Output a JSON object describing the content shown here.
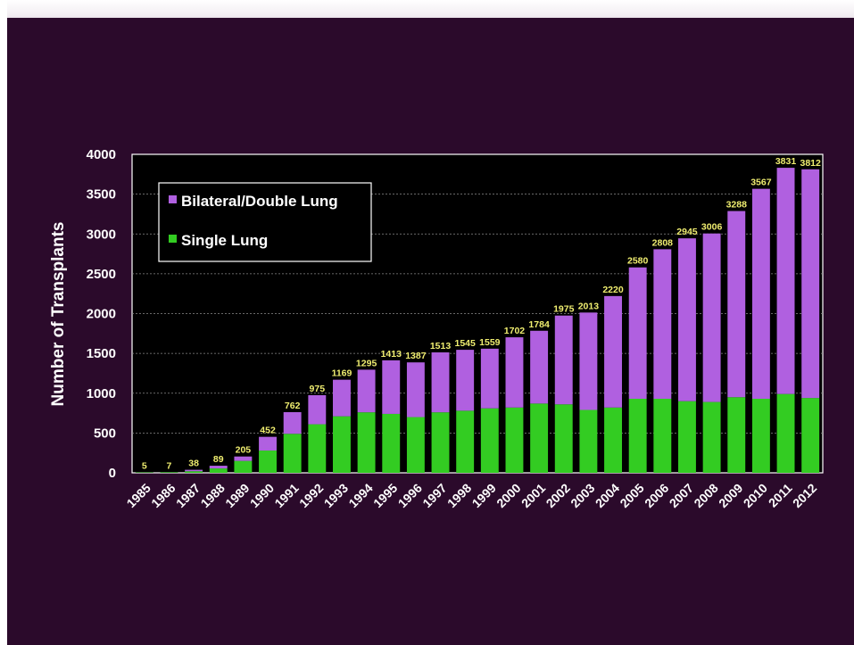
{
  "colors": {
    "background": "#2b0a2b",
    "plot_bg": "#000000",
    "bilateral": "#b060e0",
    "single": "#33cc22",
    "data_label": "#f0ee70"
  },
  "chart_data": {
    "type": "bar",
    "stacked": true,
    "title": "",
    "xlabel": "",
    "ylabel": "Number of Transplants",
    "ylim": [
      0,
      4000
    ],
    "yticks": [
      0,
      500,
      1000,
      1500,
      2000,
      2500,
      3000,
      3500,
      4000
    ],
    "grid": true,
    "legend_position": "top-left",
    "categories": [
      "1985",
      "1986",
      "1987",
      "1988",
      "1989",
      "1990",
      "1991",
      "1992",
      "1993",
      "1994",
      "1995",
      "1996",
      "1997",
      "1998",
      "1999",
      "2000",
      "2001",
      "2002",
      "2003",
      "2004",
      "2005",
      "2006",
      "2007",
      "2008",
      "2009",
      "2010",
      "2011",
      "2012"
    ],
    "totals": [
      5,
      7,
      38,
      89,
      205,
      452,
      762,
      975,
      1169,
      1295,
      1413,
      1387,
      1513,
      1545,
      1559,
      1702,
      1784,
      1975,
      2013,
      2220,
      2580,
      2808,
      2945,
      3006,
      3288,
      3567,
      3831,
      3812
    ],
    "series": [
      {
        "name": "Single Lung",
        "color": "#33cc22",
        "values": [
          5,
          7,
          20,
          55,
          150,
          280,
          490,
          610,
          710,
          760,
          740,
          700,
          760,
          780,
          810,
          820,
          870,
          860,
          790,
          820,
          930,
          930,
          900,
          890,
          950,
          930,
          990,
          940
        ]
      },
      {
        "name": "Bilateral/Double Lung",
        "color": "#b060e0",
        "values": [
          0,
          0,
          18,
          34,
          55,
          172,
          272,
          365,
          459,
          535,
          673,
          687,
          753,
          765,
          749,
          882,
          914,
          1115,
          1223,
          1400,
          1650,
          1878,
          2045,
          2116,
          2338,
          2637,
          2841,
          2872
        ]
      }
    ]
  }
}
